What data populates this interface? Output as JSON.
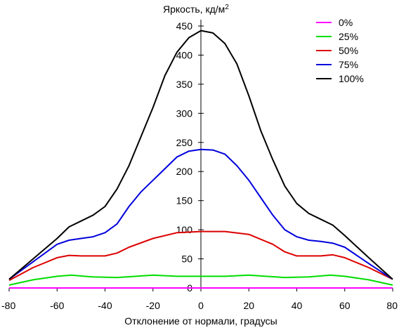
{
  "chart_data": {
    "type": "line",
    "xlabel": "Отклонение от нормали, градусы",
    "ylabel": "Яркость, кд/м",
    "ylabel_sup": "2",
    "xlim": [
      -80,
      80
    ],
    "ylim": [
      0,
      450
    ],
    "x_ticks": [
      -80,
      -60,
      -40,
      -20,
      0,
      20,
      40,
      60,
      80
    ],
    "y_ticks": [
      0,
      50,
      100,
      150,
      200,
      250,
      300,
      350,
      400,
      450
    ],
    "grid": false,
    "legend_position": "top-right",
    "series": [
      {
        "name": "0%",
        "color": "#ff00ff",
        "points": [
          [
            -80,
            0
          ],
          [
            -60,
            0
          ],
          [
            -40,
            0
          ],
          [
            -20,
            0
          ],
          [
            0,
            0
          ],
          [
            20,
            0
          ],
          [
            40,
            0
          ],
          [
            60,
            0
          ],
          [
            80,
            0
          ]
        ]
      },
      {
        "name": "25%",
        "color": "#00dd00",
        "points": [
          [
            -80,
            5
          ],
          [
            -70,
            14
          ],
          [
            -60,
            20
          ],
          [
            -54,
            22
          ],
          [
            -45,
            19
          ],
          [
            -35,
            18
          ],
          [
            -20,
            22
          ],
          [
            -10,
            20
          ],
          [
            0,
            20
          ],
          [
            10,
            20
          ],
          [
            20,
            22
          ],
          [
            35,
            18
          ],
          [
            45,
            19
          ],
          [
            54,
            22
          ],
          [
            60,
            20
          ],
          [
            70,
            14
          ],
          [
            80,
            5
          ]
        ]
      },
      {
        "name": "50%",
        "color": "#dd0000",
        "points": [
          [
            -80,
            13
          ],
          [
            -70,
            35
          ],
          [
            -60,
            52
          ],
          [
            -55,
            56
          ],
          [
            -50,
            55
          ],
          [
            -40,
            55
          ],
          [
            -35,
            60
          ],
          [
            -30,
            70
          ],
          [
            -20,
            85
          ],
          [
            -10,
            95
          ],
          [
            0,
            97
          ],
          [
            10,
            97
          ],
          [
            20,
            92
          ],
          [
            30,
            75
          ],
          [
            35,
            62
          ],
          [
            40,
            55
          ],
          [
            50,
            55
          ],
          [
            55,
            57
          ],
          [
            60,
            52
          ],
          [
            70,
            35
          ],
          [
            80,
            15
          ]
        ]
      },
      {
        "name": "75%",
        "color": "#0000dd",
        "points": [
          [
            -80,
            15
          ],
          [
            -70,
            45
          ],
          [
            -60,
            75
          ],
          [
            -55,
            82
          ],
          [
            -50,
            85
          ],
          [
            -45,
            88
          ],
          [
            -40,
            95
          ],
          [
            -35,
            110
          ],
          [
            -30,
            140
          ],
          [
            -25,
            165
          ],
          [
            -20,
            185
          ],
          [
            -15,
            205
          ],
          [
            -10,
            225
          ],
          [
            -5,
            235
          ],
          [
            0,
            238
          ],
          [
            5,
            237
          ],
          [
            10,
            230
          ],
          [
            15,
            210
          ],
          [
            20,
            185
          ],
          [
            25,
            155
          ],
          [
            30,
            125
          ],
          [
            35,
            100
          ],
          [
            40,
            88
          ],
          [
            45,
            82
          ],
          [
            50,
            80
          ],
          [
            55,
            77
          ],
          [
            60,
            70
          ],
          [
            70,
            42
          ],
          [
            80,
            15
          ]
        ]
      },
      {
        "name": "100%",
        "color": "#000000",
        "points": [
          [
            -80,
            15
          ],
          [
            -70,
            50
          ],
          [
            -60,
            85
          ],
          [
            -55,
            105
          ],
          [
            -50,
            115
          ],
          [
            -45,
            125
          ],
          [
            -40,
            140
          ],
          [
            -35,
            170
          ],
          [
            -30,
            210
          ],
          [
            -25,
            260
          ],
          [
            -20,
            310
          ],
          [
            -15,
            365
          ],
          [
            -10,
            405
          ],
          [
            -5,
            430
          ],
          [
            0,
            442
          ],
          [
            5,
            438
          ],
          [
            10,
            420
          ],
          [
            15,
            385
          ],
          [
            20,
            330
          ],
          [
            25,
            270
          ],
          [
            30,
            220
          ],
          [
            35,
            175
          ],
          [
            40,
            145
          ],
          [
            45,
            128
          ],
          [
            50,
            118
          ],
          [
            55,
            108
          ],
          [
            60,
            90
          ],
          [
            70,
            52
          ],
          [
            80,
            15
          ]
        ]
      }
    ]
  }
}
